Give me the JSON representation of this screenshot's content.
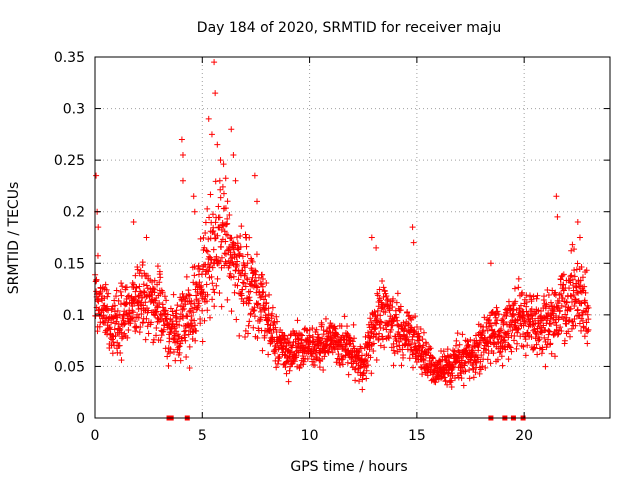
{
  "chart_data": {
    "type": "scatter",
    "title": "Day 184 of 2020, SRMTID for receiver maju",
    "xlabel": "GPS time / hours",
    "ylabel": "SRMTID / TECUs",
    "xlim": [
      0,
      24
    ],
    "ylim": [
      0,
      0.35
    ],
    "x_ticks": [
      0,
      5,
      10,
      15,
      20
    ],
    "x_tick_labels": [
      "0",
      "5",
      "10",
      "15",
      "20"
    ],
    "y_ticks": [
      0,
      0.05,
      0.1,
      0.15,
      0.2,
      0.25,
      0.3,
      0.35
    ],
    "y_tick_labels": [
      "0",
      "0.05",
      "0.1",
      "0.15",
      "0.2",
      "0.25",
      "0.3",
      "0.35"
    ],
    "grid": true,
    "marker": "+",
    "point_color": "#ff0000",
    "zero_marker_x": [
      3.45,
      3.55,
      4.3,
      18.45,
      19.1,
      19.5,
      19.95
    ],
    "data_density_profile": {
      "x": [
        0,
        0.5,
        1,
        1.5,
        2,
        2.5,
        3,
        3.5,
        4,
        4.5,
        5,
        5.5,
        6,
        6.5,
        7,
        7.5,
        8,
        8.5,
        9,
        9.5,
        10,
        10.5,
        11,
        11.5,
        12,
        12.5,
        13,
        13.5,
        14,
        14.5,
        15,
        15.5,
        16,
        16.5,
        17,
        17.5,
        18,
        18.5,
        19,
        19.5,
        20,
        20.5,
        21,
        21.5,
        22,
        22.5,
        23
      ],
      "median": [
        0.13,
        0.1,
        0.09,
        0.1,
        0.12,
        0.11,
        0.11,
        0.08,
        0.09,
        0.1,
        0.13,
        0.16,
        0.18,
        0.15,
        0.13,
        0.12,
        0.1,
        0.07,
        0.065,
        0.07,
        0.065,
        0.07,
        0.075,
        0.07,
        0.065,
        0.05,
        0.09,
        0.1,
        0.09,
        0.08,
        0.075,
        0.055,
        0.045,
        0.05,
        0.055,
        0.06,
        0.07,
        0.08,
        0.08,
        0.1,
        0.1,
        0.09,
        0.09,
        0.1,
        0.11,
        0.12,
        0.1
      ],
      "spread": [
        0.04,
        0.03,
        0.03,
        0.03,
        0.035,
        0.035,
        0.03,
        0.025,
        0.035,
        0.04,
        0.05,
        0.06,
        0.06,
        0.05,
        0.045,
        0.04,
        0.03,
        0.02,
        0.02,
        0.02,
        0.02,
        0.02,
        0.02,
        0.02,
        0.02,
        0.02,
        0.03,
        0.035,
        0.03,
        0.025,
        0.025,
        0.02,
        0.015,
        0.02,
        0.02,
        0.02,
        0.025,
        0.03,
        0.03,
        0.03,
        0.03,
        0.03,
        0.03,
        0.035,
        0.04,
        0.04,
        0.03
      ]
    },
    "outlier_points": [
      {
        "x": 0.05,
        "y": 0.235
      },
      {
        "x": 0.1,
        "y": 0.2
      },
      {
        "x": 0.15,
        "y": 0.185
      },
      {
        "x": 1.8,
        "y": 0.19
      },
      {
        "x": 2.4,
        "y": 0.175
      },
      {
        "x": 4.05,
        "y": 0.27
      },
      {
        "x": 4.1,
        "y": 0.23
      },
      {
        "x": 4.1,
        "y": 0.255
      },
      {
        "x": 4.6,
        "y": 0.215
      },
      {
        "x": 4.65,
        "y": 0.2
      },
      {
        "x": 5.3,
        "y": 0.29
      },
      {
        "x": 5.45,
        "y": 0.275
      },
      {
        "x": 5.55,
        "y": 0.345
      },
      {
        "x": 5.6,
        "y": 0.315
      },
      {
        "x": 5.7,
        "y": 0.265
      },
      {
        "x": 5.85,
        "y": 0.25
      },
      {
        "x": 6.35,
        "y": 0.28
      },
      {
        "x": 6.45,
        "y": 0.255
      },
      {
        "x": 6.55,
        "y": 0.23
      },
      {
        "x": 7.45,
        "y": 0.235
      },
      {
        "x": 7.55,
        "y": 0.21
      },
      {
        "x": 12.9,
        "y": 0.175
      },
      {
        "x": 13.1,
        "y": 0.165
      },
      {
        "x": 14.8,
        "y": 0.185
      },
      {
        "x": 14.85,
        "y": 0.17
      },
      {
        "x": 18.45,
        "y": 0.15
      },
      {
        "x": 21.5,
        "y": 0.215
      },
      {
        "x": 21.55,
        "y": 0.195
      },
      {
        "x": 22.5,
        "y": 0.19
      },
      {
        "x": 22.6,
        "y": 0.175
      }
    ]
  }
}
